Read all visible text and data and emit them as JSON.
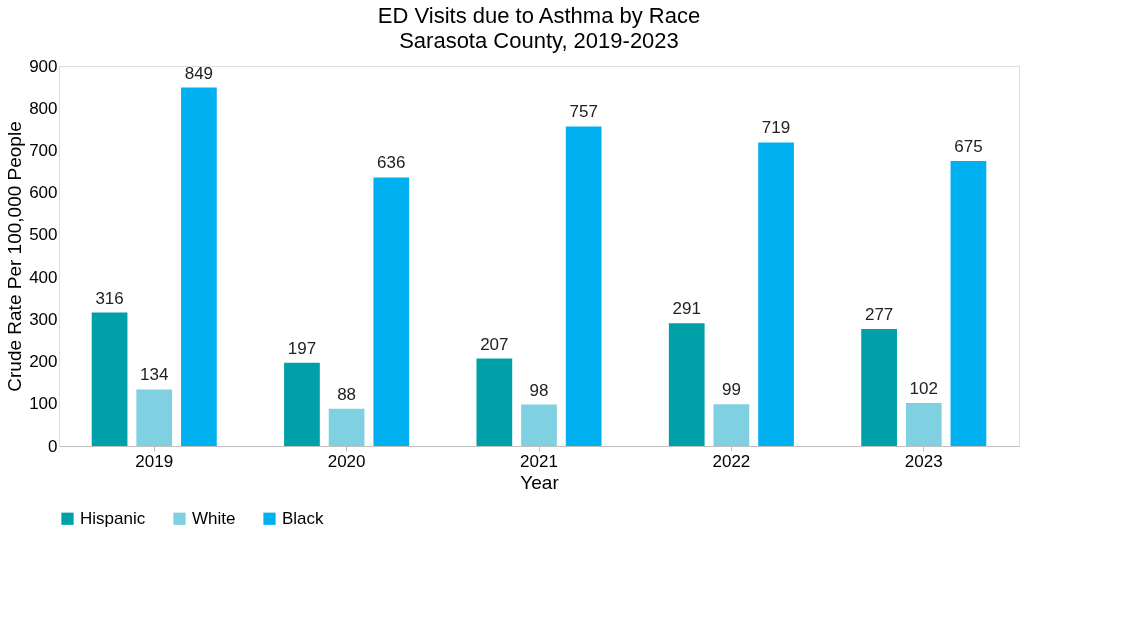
{
  "chart_data": {
    "type": "bar",
    "title": "ED Visits due to Asthma by Race",
    "subtitle": "Sarasota County, 2019-2023",
    "xlabel": "Year",
    "ylabel": "Crude Rate Per 100,000 People",
    "categories": [
      "2019",
      "2020",
      "2021",
      "2022",
      "2023"
    ],
    "series": [
      {
        "name": "Hispanic",
        "color": "#00a0a8",
        "values": [
          316,
          197,
          207,
          291,
          277
        ]
      },
      {
        "name": "White",
        "color": "#7fd0e0",
        "values": [
          134,
          88,
          98,
          99,
          102
        ]
      },
      {
        "name": "Black",
        "color": "#00b0f0",
        "values": [
          849,
          636,
          757,
          719,
          675
        ]
      }
    ],
    "ylim": [
      0,
      900
    ],
    "yticks": [
      0,
      100,
      200,
      300,
      400,
      500,
      600,
      700,
      800,
      900
    ],
    "grid": false,
    "legend": "bottom",
    "data_labels": true
  }
}
